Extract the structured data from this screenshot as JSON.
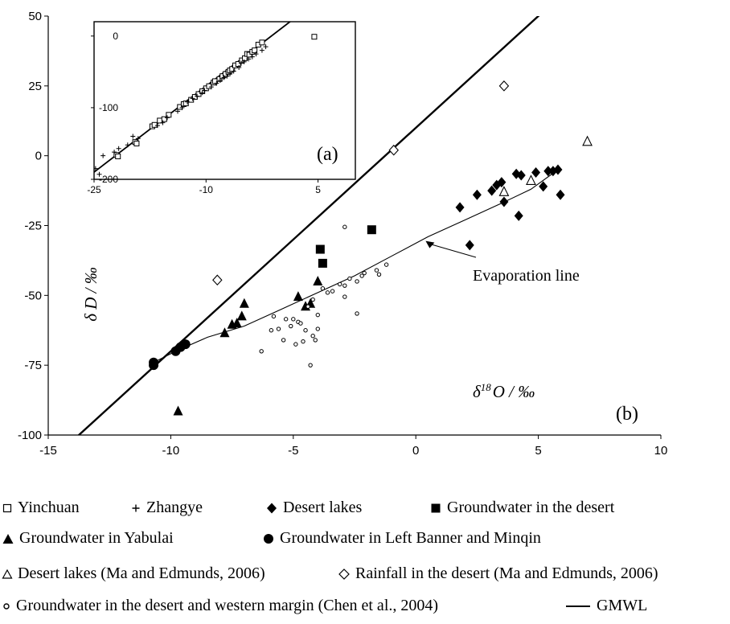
{
  "chart_data": {
    "type": "scatter",
    "main": {
      "xlim": [
        -15,
        10
      ],
      "ylim": [
        -100,
        50
      ],
      "x_ticks": [
        -15,
        -10,
        -5,
        0,
        5,
        10
      ],
      "y_ticks": [
        -100,
        -75,
        -50,
        -25,
        0,
        25,
        50
      ],
      "x_tick_labels": [
        "-15",
        "-10",
        "-5",
        "0",
        "5",
        "10"
      ],
      "y_tick_labels": [
        "-100",
        "-75",
        "-50",
        "-25",
        "0",
        "25",
        "50"
      ],
      "xlabel_prefix": "δ",
      "xlabel_sup": "18",
      "xlabel_suffix": "O / ‰",
      "ylabel": "δ D / ‰",
      "panel_label": "(b)",
      "annotation": "Evaporation line",
      "annotation_target": [
        0.4,
        -30.5
      ],
      "gmwl": {
        "name": "GMWL",
        "slope": 8,
        "intercept": 10
      },
      "evaporation_line": [
        [
          -10.7,
          -74
        ],
        [
          -9.8,
          -70
        ],
        [
          -8.5,
          -65
        ],
        [
          -7,
          -61
        ],
        [
          -5.5,
          -55
        ],
        [
          -4,
          -49
        ],
        [
          -2.5,
          -43
        ],
        [
          -1,
          -36
        ],
        [
          0.5,
          -29
        ],
        [
          2,
          -23
        ],
        [
          3.5,
          -17
        ],
        [
          4.7,
          -12
        ],
        [
          5.8,
          -5
        ]
      ],
      "series": [
        {
          "name": "Yinchuan",
          "marker": "open-square",
          "points": []
        },
        {
          "name": "Zhangye",
          "marker": "plus",
          "points": []
        },
        {
          "name": "Desert lakes",
          "marker": "filled-diamond",
          "points": [
            [
              1.8,
              -18.5
            ],
            [
              2.2,
              -32
            ],
            [
              2.5,
              -14
            ],
            [
              3.1,
              -12.5
            ],
            [
              3.3,
              -10.5
            ],
            [
              3.5,
              -9.5
            ],
            [
              3.6,
              -16.5
            ],
            [
              4.1,
              -6.5
            ],
            [
              4.2,
              -21.5
            ],
            [
              4.3,
              -7
            ],
            [
              4.9,
              -6
            ],
            [
              5.2,
              -11
            ],
            [
              5.4,
              -5.5
            ],
            [
              5.6,
              -5.5
            ],
            [
              5.8,
              -5
            ],
            [
              5.9,
              -14
            ]
          ]
        },
        {
          "name": "Groundwater in the desert",
          "marker": "filled-square",
          "points": [
            [
              -3.9,
              -33.5
            ],
            [
              -3.8,
              -38.5
            ],
            [
              -1.8,
              -26.5
            ]
          ]
        },
        {
          "name": "Groundwater in Yabulai",
          "marker": "filled-triangle",
          "points": [
            [
              -9.7,
              -91.5
            ],
            [
              -7.8,
              -63.5
            ],
            [
              -7.5,
              -60.5
            ],
            [
              -7.3,
              -60
            ],
            [
              -7.1,
              -57.5
            ],
            [
              -7.0,
              -53
            ],
            [
              -4.8,
              -50.5
            ],
            [
              -4.5,
              -54
            ],
            [
              -4.3,
              -53
            ],
            [
              -4.0,
              -45
            ]
          ]
        },
        {
          "name": "Groundwater in Left Banner and Minqin",
          "marker": "filled-circle",
          "points": [
            [
              -10.7,
              -74
            ],
            [
              -10.7,
              -75
            ],
            [
              -9.8,
              -70
            ],
            [
              -9.6,
              -68.5
            ],
            [
              -9.4,
              -67.5
            ]
          ]
        },
        {
          "name": "Desert lakes (Ma and Edmunds, 2006)",
          "marker": "open-triangle",
          "points": [
            [
              3.6,
              -13
            ],
            [
              4.7,
              -9
            ],
            [
              7,
              5
            ]
          ]
        },
        {
          "name": "Rainfall in the desert (Ma and Edmunds, 2006)",
          "marker": "open-diamond",
          "points": [
            [
              -8.1,
              -44.5
            ],
            [
              -0.9,
              2
            ],
            [
              3.6,
              25
            ]
          ]
        },
        {
          "name": "Groundwater in the desert and western margin (Chen et al., 2004)",
          "marker": "small-open-circle",
          "points": [
            [
              -6.3,
              -70
            ],
            [
              -5.9,
              -62.5
            ],
            [
              -5.8,
              -57.5
            ],
            [
              -5.6,
              -62
            ],
            [
              -5.4,
              -66
            ],
            [
              -5.3,
              -58.5
            ],
            [
              -5.1,
              -61
            ],
            [
              -5.0,
              -58.5
            ],
            [
              -4.9,
              -67.5
            ],
            [
              -4.8,
              -59.5
            ],
            [
              -4.7,
              -60
            ],
            [
              -4.6,
              -66.5
            ],
            [
              -4.5,
              -62.5
            ],
            [
              -4.4,
              -54
            ],
            [
              -4.3,
              -75
            ],
            [
              -4.2,
              -64.5
            ],
            [
              -4.2,
              -51.5
            ],
            [
              -4.1,
              -66
            ],
            [
              -4.0,
              -57
            ],
            [
              -4.0,
              -62
            ],
            [
              -3.8,
              -47.5
            ],
            [
              -3.6,
              -49
            ],
            [
              -3.4,
              -48.5
            ],
            [
              -3.1,
              -46
            ],
            [
              -2.9,
              -46.5
            ],
            [
              -2.9,
              -50.5
            ],
            [
              -2.9,
              -25.5
            ],
            [
              -2.7,
              -44
            ],
            [
              -2.4,
              -45
            ],
            [
              -2.4,
              -56.5
            ],
            [
              -2.2,
              -43
            ],
            [
              -2.1,
              -42
            ],
            [
              -1.6,
              -41
            ],
            [
              -1.5,
              -42.5
            ],
            [
              -1.2,
              -39
            ]
          ]
        },
        {
          "name": "GMWL",
          "marker": "line",
          "points": []
        }
      ]
    },
    "inset": {
      "panel_label": "(a)",
      "xlim": [
        -25,
        10
      ],
      "ylim": [
        -200,
        20
      ],
      "x_ticks": [
        -25,
        -10,
        5
      ],
      "y_ticks": [
        -200,
        -100,
        0
      ],
      "x_tick_labels": [
        "-25",
        "-10",
        "5"
      ],
      "y_tick_labels": [
        "-200",
        "-100",
        "0"
      ],
      "gmwl": {
        "slope": 8,
        "intercept": 10
      },
      "series": [
        {
          "name": "Yinchuan",
          "marker": "open-square",
          "points": [
            [
              -22,
              -166
            ],
            [
              -21.8,
              -168
            ],
            [
              -19.5,
              -148
            ],
            [
              -19.3,
              -150
            ],
            [
              -17.2,
              -126
            ],
            [
              -16.9,
              -124
            ],
            [
              -16.2,
              -118
            ],
            [
              -15.6,
              -116
            ],
            [
              -15,
              -110
            ],
            [
              -13.5,
              -99
            ],
            [
              -13,
              -95
            ],
            [
              -12.7,
              -94
            ],
            [
              -12,
              -89
            ],
            [
              -11.5,
              -85
            ],
            [
              -11,
              -81
            ],
            [
              -10.5,
              -77
            ],
            [
              -10,
              -73
            ],
            [
              -9.6,
              -70
            ],
            [
              -9,
              -65
            ],
            [
              -8.8,
              -63
            ],
            [
              -8.2,
              -60
            ],
            [
              -7.8,
              -56
            ],
            [
              -7.4,
              -53
            ],
            [
              -7,
              -50
            ],
            [
              -6.8,
              -48
            ],
            [
              -6.5,
              -46
            ],
            [
              -6.1,
              -41
            ],
            [
              -5.7,
              -39
            ],
            [
              -5.2,
              -34
            ],
            [
              -4.8,
              -31
            ],
            [
              -4.5,
              -25
            ],
            [
              -4.2,
              -26
            ],
            [
              -3.8,
              -22
            ],
            [
              -3.5,
              -20
            ],
            [
              -3,
              -12
            ],
            [
              -2.5,
              -9
            ],
            [
              4.5,
              -1
            ]
          ]
        },
        {
          "name": "Zhangye",
          "marker": "plus",
          "points": [
            [
              -24.8,
              -185
            ],
            [
              -24.3,
              -193
            ],
            [
              -23.8,
              -167
            ],
            [
              -22.3,
              -162
            ],
            [
              -21.7,
              -157
            ],
            [
              -20.5,
              -152
            ],
            [
              -19.8,
              -140
            ],
            [
              -19.1,
              -143
            ],
            [
              -16.5,
              -125
            ],
            [
              -15.8,
              -121
            ],
            [
              -15.2,
              -114
            ],
            [
              -13.8,
              -105
            ],
            [
              -13.2,
              -100
            ],
            [
              -12.5,
              -92
            ],
            [
              -11.8,
              -87
            ],
            [
              -11.2,
              -84
            ],
            [
              -10.5,
              -79
            ],
            [
              -10.2,
              -76
            ],
            [
              -9.3,
              -71
            ],
            [
              -8.6,
              -66
            ],
            [
              -8.1,
              -62
            ],
            [
              -7.6,
              -58
            ],
            [
              -7.2,
              -56
            ],
            [
              -6.8,
              -53
            ],
            [
              -6.3,
              -49
            ],
            [
              -5.6,
              -44
            ],
            [
              -5.3,
              -38
            ],
            [
              -4.9,
              -36
            ],
            [
              -4.3,
              -32
            ],
            [
              -3.8,
              -29
            ],
            [
              -3.3,
              -25
            ],
            [
              -2.5,
              -20
            ],
            [
              -2,
              -15
            ]
          ]
        }
      ]
    }
  },
  "legend": {
    "row1": [
      "Yinchuan",
      "Zhangye",
      "Desert lakes",
      "Groundwater in the desert"
    ],
    "row2": [
      "Groundwater in Yabulai",
      "Groundwater in Left Banner and Minqin"
    ],
    "row3": [
      "Desert lakes (Ma and Edmunds, 2006)",
      "Rainfall in the desert (Ma and Edmunds, 2006)"
    ],
    "row4": [
      "Groundwater in the desert and western margin (Chen et al., 2004)",
      "GMWL"
    ]
  }
}
